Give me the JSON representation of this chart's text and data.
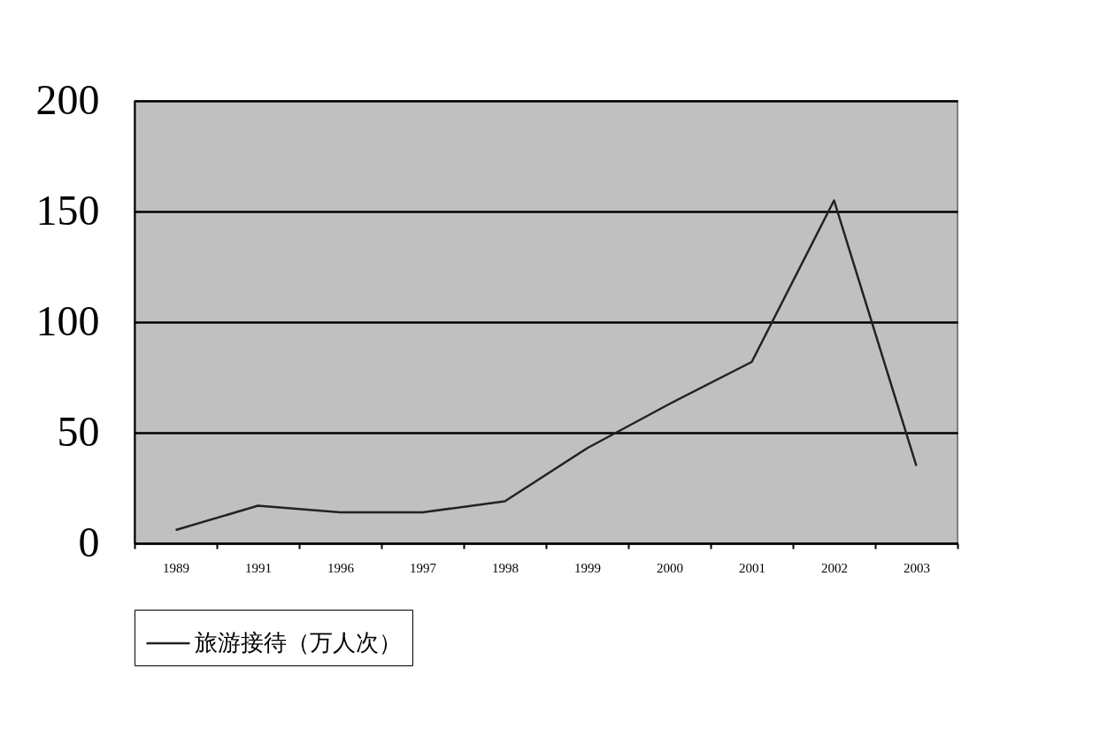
{
  "chart_data": {
    "type": "line",
    "categories": [
      "1989",
      "1991",
      "1996",
      "1997",
      "1998",
      "1999",
      "2000",
      "2001",
      "2002",
      "2003"
    ],
    "series": [
      {
        "name": "旅游接待（万人次）",
        "color": "#222222",
        "values": [
          6,
          17,
          14,
          14,
          19,
          43,
          63,
          82,
          155,
          35
        ]
      }
    ],
    "ylim": [
      0,
      200
    ],
    "yticks": [
      0,
      50,
      100,
      150,
      200
    ],
    "grid": "y",
    "legend": "bottom",
    "marker": "none",
    "line_style": "solid"
  }
}
